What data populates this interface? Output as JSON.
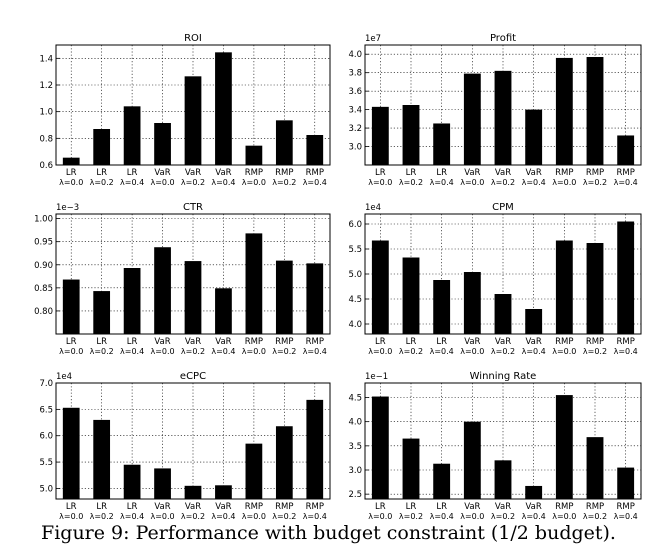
{
  "caption": "Figure 9:  Performance with budget constraint (1/2 budget).",
  "colors": {
    "bar": "#000000",
    "axis": "#000000",
    "grid": "#000000",
    "background": "#ffffff"
  },
  "chart_data": [
    {
      "type": "bar",
      "title": "ROI",
      "exponent": "",
      "categories": [
        "LR",
        "LR",
        "LR",
        "VaR",
        "VaR",
        "VaR",
        "RMP",
        "RMP",
        "RMP"
      ],
      "category_params": [
        "λ=0.0",
        "λ=0.2",
        "λ=0.4",
        "λ=0.0",
        "λ=0.2",
        "λ=0.4",
        "λ=0.0",
        "λ=0.2",
        "λ=0.4"
      ],
      "values": [
        0.655,
        0.87,
        1.04,
        0.915,
        1.265,
        1.445,
        0.745,
        0.935,
        0.825
      ],
      "ylim": [
        0.6,
        1.5
      ],
      "yticks": [
        0.6,
        0.8,
        1.0,
        1.2,
        1.4
      ],
      "ytick_labels": [
        "0.6",
        "0.8",
        "1.0",
        "1.2",
        "1.4"
      ],
      "grid": true
    },
    {
      "type": "bar",
      "title": "Profit",
      "exponent": "1e7",
      "categories": [
        "LR",
        "LR",
        "LR",
        "VaR",
        "VaR",
        "VaR",
        "RMP",
        "RMP",
        "RMP"
      ],
      "category_params": [
        "λ=0.0",
        "λ=0.2",
        "λ=0.4",
        "λ=0.0",
        "λ=0.2",
        "λ=0.4",
        "λ=0.0",
        "λ=0.2",
        "λ=0.4"
      ],
      "values": [
        3.43,
        3.45,
        3.25,
        3.79,
        3.82,
        3.4,
        3.96,
        3.97,
        3.12
      ],
      "ylim": [
        2.8,
        4.1
      ],
      "yticks": [
        3.0,
        3.2,
        3.4,
        3.6,
        3.8,
        4.0
      ],
      "ytick_labels": [
        "3.0",
        "3.2",
        "3.4",
        "3.6",
        "3.8",
        "4.0"
      ],
      "grid": true
    },
    {
      "type": "bar",
      "title": "CTR",
      "exponent": "1e−3",
      "categories": [
        "LR",
        "LR",
        "LR",
        "VaR",
        "VaR",
        "VaR",
        "RMP",
        "RMP",
        "RMP"
      ],
      "category_params": [
        "λ=0.0",
        "λ=0.2",
        "λ=0.4",
        "λ=0.0",
        "λ=0.2",
        "λ=0.4",
        "λ=0.0",
        "λ=0.2",
        "λ=0.4"
      ],
      "values": [
        0.868,
        0.843,
        0.893,
        0.938,
        0.908,
        0.849,
        0.968,
        0.909,
        0.903
      ],
      "ylim": [
        0.75,
        1.01
      ],
      "yticks": [
        0.8,
        0.85,
        0.9,
        0.95,
        1.0
      ],
      "ytick_labels": [
        "0.80",
        "0.85",
        "0.90",
        "0.95",
        "1.00"
      ],
      "grid": true
    },
    {
      "type": "bar",
      "title": "CPM",
      "exponent": "1e4",
      "categories": [
        "LR",
        "LR",
        "LR",
        "VaR",
        "VaR",
        "VaR",
        "RMP",
        "RMP",
        "RMP"
      ],
      "category_params": [
        "λ=0.0",
        "λ=0.2",
        "λ=0.4",
        "λ=0.0",
        "λ=0.2",
        "λ=0.4",
        "λ=0.0",
        "λ=0.2",
        "λ=0.4"
      ],
      "values": [
        5.67,
        5.33,
        4.88,
        5.04,
        4.6,
        4.3,
        5.67,
        5.62,
        6.05
      ],
      "ylim": [
        3.8,
        6.2
      ],
      "yticks": [
        4.0,
        4.5,
        5.0,
        5.5,
        6.0
      ],
      "ytick_labels": [
        "4.0",
        "4.5",
        "5.0",
        "5.5",
        "6.0"
      ],
      "grid": true
    },
    {
      "type": "bar",
      "title": "eCPC",
      "exponent": "1e4",
      "categories": [
        "LR",
        "LR",
        "LR",
        "VaR",
        "VaR",
        "VaR",
        "RMP",
        "RMP",
        "RMP"
      ],
      "category_params": [
        "λ=0.0",
        "λ=0.2",
        "λ=0.4",
        "λ=0.0",
        "λ=0.2",
        "λ=0.4",
        "λ=0.0",
        "λ=0.2",
        "λ=0.4"
      ],
      "values": [
        6.53,
        6.3,
        5.45,
        5.38,
        5.05,
        5.06,
        5.85,
        6.18,
        6.68
      ],
      "ylim": [
        4.8,
        7.0
      ],
      "yticks": [
        5.0,
        5.5,
        6.0,
        6.5,
        7.0
      ],
      "ytick_labels": [
        "5.0",
        "5.5",
        "6.0",
        "6.5",
        "7.0"
      ],
      "grid": true
    },
    {
      "type": "bar",
      "title": "Winning Rate",
      "exponent": "1e−1",
      "categories": [
        "LR",
        "LR",
        "LR",
        "VaR",
        "VaR",
        "VaR",
        "RMP",
        "RMP",
        "RMP"
      ],
      "category_params": [
        "λ=0.0",
        "λ=0.2",
        "λ=0.4",
        "λ=0.0",
        "λ=0.2",
        "λ=0.4",
        "λ=0.0",
        "λ=0.2",
        "λ=0.4"
      ],
      "values": [
        4.52,
        3.65,
        3.13,
        4.0,
        3.2,
        2.67,
        4.55,
        3.68,
        3.05
      ],
      "ylim": [
        2.4,
        4.8
      ],
      "yticks": [
        2.5,
        3.0,
        3.5,
        4.0,
        4.5
      ],
      "ytick_labels": [
        "2.5",
        "3.0",
        "3.5",
        "4.0",
        "4.5"
      ],
      "grid": true
    }
  ]
}
